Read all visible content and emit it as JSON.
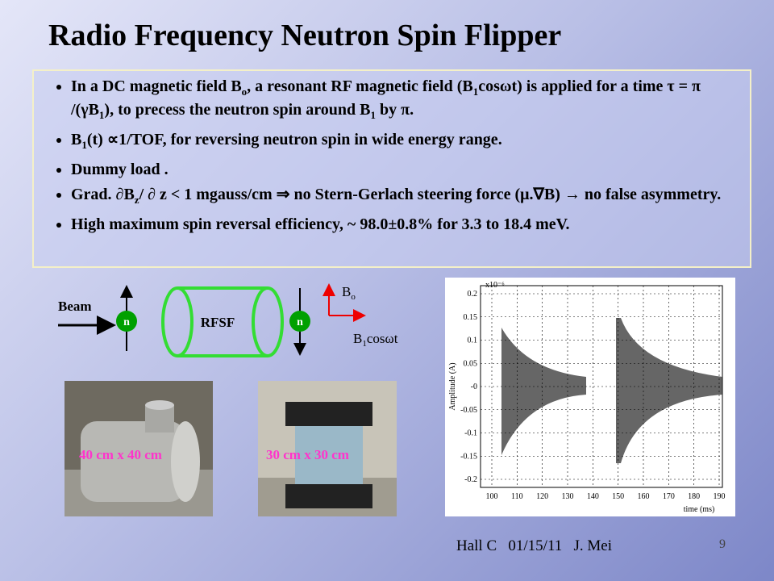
{
  "header": {
    "title": "Radio Frequency Neutron Spin Flipper"
  },
  "bullets": [
    [
      "In a DC magnetic field B",
      "o",
      ", a resonant RF magnetic field (B",
      "1",
      "cosωt) is applied for a time τ = π /(γB",
      "1",
      "), to precess the neutron spin around B",
      "1",
      " by π."
    ],
    [
      "B",
      "1",
      "(t) ∝1/TOF, for reversing neutron spin in wide energy range."
    ],
    [
      "Dummy load ."
    ],
    [
      "Grad. ∂B",
      "z",
      "/ ∂ z  < 1 mgauss/cm ⇒ no Stern-Gerlach steering force (μ.∇B) → no false asymmetry."
    ],
    [
      "High maximum spin reversal efficiency, ~ 98.0±0.8% for 3.3 to 18.4 meV."
    ]
  ],
  "diagram": {
    "beam": "Beam",
    "n_in": "n",
    "device": "RFSF",
    "n_out": "n",
    "b0": [
      "B",
      "o"
    ],
    "b1": [
      "B",
      "1",
      "cosωt"
    ]
  },
  "photos": [
    {
      "caption": "40 cm x 40 cm"
    },
    {
      "caption": "30 cm x 30 cm"
    }
  ],
  "plot": {
    "exponent": "x10⁻⁶",
    "ylabel": "Amplitude (A)",
    "xlabel": "time (ms)",
    "yticks": [
      "0.2",
      "0.15",
      "0.1",
      "0.05",
      "-0",
      "-0.05",
      "-0.1",
      "-0.15",
      "-0.2"
    ],
    "xticks": [
      "100",
      "110",
      "120",
      "130",
      "140",
      "150",
      "160",
      "170",
      "180",
      "190"
    ]
  },
  "footer": {
    "credit": "Hall C   01/15/11   J. Mei",
    "page": "9"
  }
}
